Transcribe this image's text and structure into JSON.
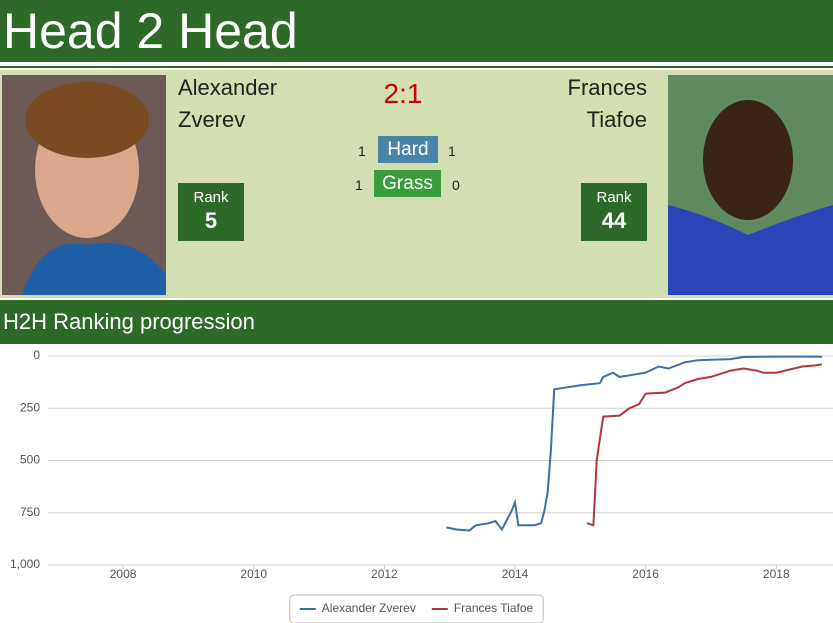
{
  "header": {
    "title": "Head 2 Head"
  },
  "players": [
    {
      "first": "Alexander",
      "last": "Zverev",
      "rank_label": "Rank",
      "rank": 5
    },
    {
      "first": "Frances",
      "last": "Tiafoe",
      "rank_label": "Rank",
      "rank": 44
    }
  ],
  "score": "2:1",
  "surfaces": [
    {
      "name": "Hard",
      "left": 1,
      "right": 1
    },
    {
      "name": "Grass",
      "left": 1,
      "right": 0
    }
  ],
  "section_title": "H2H Ranking progression",
  "chart_data": {
    "type": "line",
    "xlim": [
      2006.85,
      2018.7
    ],
    "xticks": [
      2008,
      2010,
      2012,
      2014,
      2016,
      2018
    ],
    "ylim": [
      1000,
      0
    ],
    "yticks": [
      0,
      250,
      500,
      750,
      {
        "value": 1000,
        "label": "1,000"
      }
    ],
    "grid": true,
    "legend": "bottom",
    "series": [
      {
        "name": "Alexander Zverev",
        "color": "#3f6ea6",
        "x": [
          2012.95,
          2013.1,
          2013.3,
          2013.4,
          2013.6,
          2013.7,
          2013.8,
          2013.9,
          2013.95,
          2014.0,
          2014.05,
          2014.3,
          2014.4,
          2014.45,
          2014.5,
          2014.55,
          2014.6,
          2014.8,
          2015.0,
          2015.3,
          2015.35,
          2015.5,
          2015.6,
          2015.8,
          2016.0,
          2016.2,
          2016.35,
          2016.6,
          2016.8,
          2017.0,
          2017.3,
          2017.5,
          2017.8,
          2018.0,
          2018.5,
          2018.7
        ],
        "values": [
          820,
          830,
          835,
          810,
          800,
          790,
          830,
          770,
          740,
          700,
          810,
          810,
          800,
          740,
          650,
          450,
          160,
          150,
          140,
          130,
          100,
          80,
          100,
          90,
          80,
          50,
          60,
          30,
          20,
          18,
          15,
          5,
          4,
          3,
          3,
          4
        ]
      },
      {
        "name": "Frances Tiafoe",
        "color": "#b03a3a",
        "x": [
          2015.1,
          2015.2,
          2015.25,
          2015.35,
          2015.6,
          2015.75,
          2015.9,
          2016.0,
          2016.3,
          2016.5,
          2016.6,
          2016.8,
          2017.0,
          2017.3,
          2017.5,
          2017.7,
          2017.8,
          2018.0,
          2018.2,
          2018.4,
          2018.6,
          2018.7
        ],
        "values": [
          800,
          810,
          500,
          290,
          285,
          250,
          230,
          180,
          175,
          150,
          130,
          110,
          100,
          70,
          60,
          70,
          80,
          80,
          65,
          50,
          45,
          40
        ]
      }
    ]
  }
}
